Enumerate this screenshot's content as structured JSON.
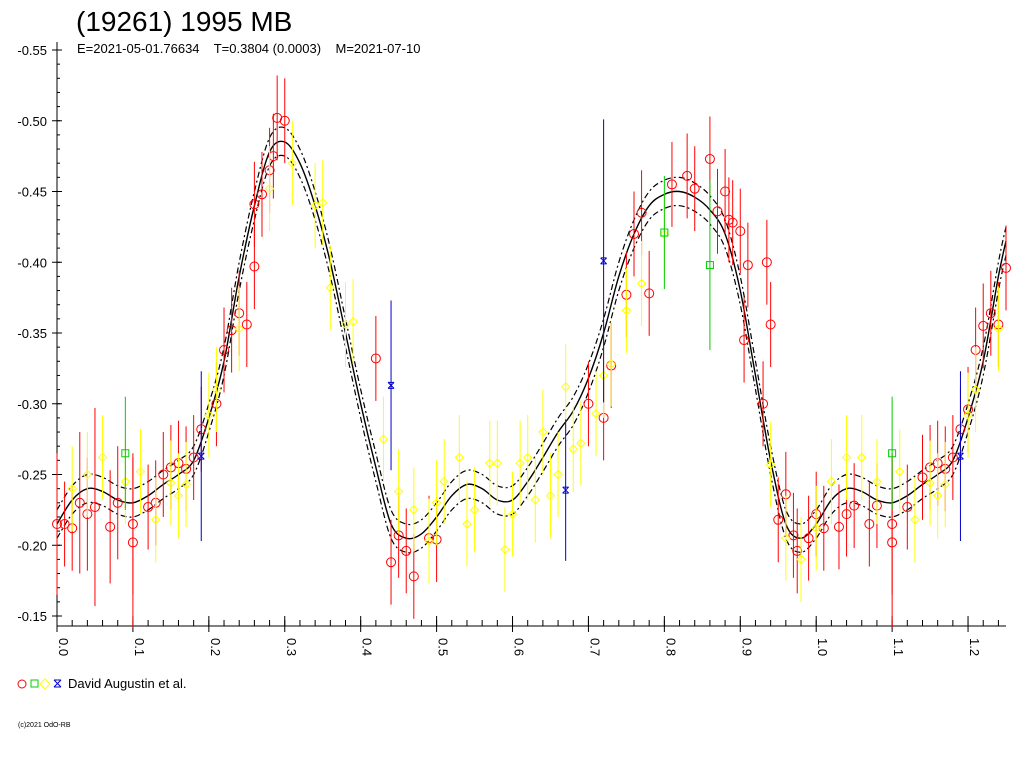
{
  "chart_data": {
    "type": "scatter",
    "title": "(19261) 1995 MB",
    "subtitle": "E=2021-05-01.76634    T=0.3804 (0.0003)    M=2021-07-10",
    "x_ticks": [
      "0.0",
      "0.1",
      "0.2",
      "0.3",
      "0.4",
      "0.5",
      "0.6",
      "0.7",
      "0.8",
      "0.9",
      "1.0",
      "1.1",
      "1.2"
    ],
    "y_ticks": [
      "-0.55",
      "-0.50",
      "-0.45",
      "-0.40",
      "-0.35",
      "-0.30",
      "-0.25",
      "-0.20",
      "-0.15"
    ],
    "xlim": [
      0.0,
      1.25
    ],
    "ylim": [
      -0.55,
      -0.15
    ],
    "y_inverted": true,
    "grid": false,
    "legend": "bottom-left",
    "legend_text": "David Augustin et al.",
    "copyright": "(c)2021 OdO-RB",
    "colors": {
      "red": "#ff0000",
      "yellow": "#ffff00",
      "green": "#00cc00",
      "blue": "#0000cc",
      "curve": "#000000"
    },
    "fit_curve": {
      "x": [
        0.0,
        0.02,
        0.04,
        0.06,
        0.08,
        0.1,
        0.12,
        0.14,
        0.16,
        0.18,
        0.2,
        0.22,
        0.24,
        0.26,
        0.28,
        0.3,
        0.32,
        0.34,
        0.36,
        0.38,
        0.4,
        0.42,
        0.44,
        0.46,
        0.48,
        0.5,
        0.52,
        0.54,
        0.56,
        0.58,
        0.6,
        0.62,
        0.64,
        0.66,
        0.68,
        0.7,
        0.72,
        0.74,
        0.76,
        0.78,
        0.8,
        0.82,
        0.84,
        0.86,
        0.88,
        0.9,
        0.92,
        0.94,
        0.96,
        0.98,
        1.0,
        1.02,
        1.04,
        1.06,
        1.08,
        1.1,
        1.12,
        1.14,
        1.16,
        1.18,
        1.2,
        1.22,
        1.24,
        1.25
      ],
      "y": [
        -0.215,
        -0.232,
        -0.24,
        -0.238,
        -0.232,
        -0.23,
        -0.235,
        -0.243,
        -0.25,
        -0.26,
        -0.29,
        -0.33,
        -0.39,
        -0.44,
        -0.478,
        -0.485,
        -0.47,
        -0.44,
        -0.4,
        -0.35,
        -0.3,
        -0.255,
        -0.215,
        -0.205,
        -0.208,
        -0.22,
        -0.235,
        -0.243,
        -0.24,
        -0.232,
        -0.232,
        -0.245,
        -0.262,
        -0.28,
        -0.295,
        -0.318,
        -0.35,
        -0.39,
        -0.42,
        -0.44,
        -0.448,
        -0.45,
        -0.446,
        -0.437,
        -0.42,
        -0.38,
        -0.32,
        -0.26,
        -0.215,
        -0.205,
        -0.215,
        -0.232,
        -0.24,
        -0.238,
        -0.232,
        -0.23,
        -0.235,
        -0.243,
        -0.25,
        -0.26,
        -0.29,
        -0.33,
        -0.39,
        -0.415
      ],
      "band": 0.01
    },
    "series": [
      {
        "color": "red",
        "marker": "circle",
        "points": [
          [
            0.0,
            -0.215,
            0.05
          ],
          [
            0.01,
            -0.215,
            0.03
          ],
          [
            0.02,
            -0.212,
            0.03
          ],
          [
            0.03,
            -0.23,
            0.05
          ],
          [
            0.04,
            -0.222,
            0.04
          ],
          [
            0.05,
            -0.227,
            0.07
          ],
          [
            0.07,
            -0.213,
            0.04
          ],
          [
            0.08,
            -0.23,
            0.04
          ],
          [
            0.1,
            -0.215,
            0.05
          ],
          [
            0.1,
            -0.202,
            0.06
          ],
          [
            0.12,
            -0.227,
            0.03
          ],
          [
            0.13,
            -0.23,
            0.03
          ],
          [
            0.14,
            -0.25,
            0.03
          ],
          [
            0.15,
            -0.255,
            0.03
          ],
          [
            0.16,
            -0.258,
            0.03
          ],
          [
            0.17,
            -0.254,
            0.03
          ],
          [
            0.18,
            -0.262,
            0.03
          ],
          [
            0.19,
            -0.282,
            0.03
          ],
          [
            0.21,
            -0.3,
            0.03
          ],
          [
            0.22,
            -0.338,
            0.03
          ],
          [
            0.23,
            -0.352,
            0.03
          ],
          [
            0.24,
            -0.364,
            0.03
          ],
          [
            0.25,
            -0.356,
            0.03
          ],
          [
            0.26,
            -0.397,
            0.03
          ],
          [
            0.26,
            -0.441,
            0.03
          ],
          [
            0.27,
            -0.448,
            0.03
          ],
          [
            0.28,
            -0.465,
            0.03
          ],
          [
            0.285,
            -0.475,
            0.03
          ],
          [
            0.29,
            -0.502,
            0.03
          ],
          [
            0.3,
            -0.5,
            0.03
          ],
          [
            0.42,
            -0.332,
            0.03
          ],
          [
            0.44,
            -0.188,
            0.03
          ],
          [
            0.45,
            -0.207,
            0.03
          ],
          [
            0.46,
            -0.196,
            0.03
          ],
          [
            0.47,
            -0.178,
            0.03
          ],
          [
            0.49,
            -0.205,
            0.03
          ],
          [
            0.5,
            -0.204,
            0.03
          ],
          [
            0.7,
            -0.3,
            0.03
          ],
          [
            0.72,
            -0.29,
            0.03
          ],
          [
            0.73,
            -0.327,
            0.03
          ],
          [
            0.75,
            -0.377,
            0.03
          ],
          [
            0.76,
            -0.42,
            0.03
          ],
          [
            0.77,
            -0.435,
            0.03
          ],
          [
            0.78,
            -0.378,
            0.03
          ],
          [
            0.81,
            -0.455,
            0.03
          ],
          [
            0.83,
            -0.461,
            0.03
          ],
          [
            0.84,
            -0.452,
            0.03
          ],
          [
            0.86,
            -0.473,
            0.03
          ],
          [
            0.87,
            -0.436,
            0.03
          ],
          [
            0.88,
            -0.45,
            0.03
          ],
          [
            0.885,
            -0.43,
            0.03
          ],
          [
            0.89,
            -0.428,
            0.03
          ],
          [
            0.9,
            -0.422,
            0.03
          ],
          [
            0.905,
            -0.345,
            0.03
          ],
          [
            0.91,
            -0.398,
            0.03
          ],
          [
            0.93,
            -0.3,
            0.03
          ],
          [
            0.935,
            -0.4,
            0.03
          ],
          [
            0.94,
            -0.356,
            0.03
          ],
          [
            0.95,
            -0.218,
            0.03
          ],
          [
            0.96,
            -0.236,
            0.03
          ],
          [
            0.97,
            -0.207,
            0.03
          ],
          [
            0.975,
            -0.196,
            0.03
          ],
          [
            0.99,
            -0.205,
            0.03
          ],
          [
            1.0,
            -0.222,
            0.03
          ],
          [
            1.01,
            -0.212,
            0.03
          ],
          [
            1.03,
            -0.213,
            0.03
          ],
          [
            1.04,
            -0.222,
            0.03
          ],
          [
            1.05,
            -0.228,
            0.03
          ],
          [
            1.07,
            -0.215,
            0.03
          ],
          [
            1.08,
            -0.228,
            0.03
          ],
          [
            1.1,
            -0.215,
            0.05
          ],
          [
            1.1,
            -0.202,
            0.06
          ],
          [
            1.12,
            -0.227,
            0.03
          ],
          [
            1.14,
            -0.248,
            0.03
          ],
          [
            1.15,
            -0.255,
            0.03
          ],
          [
            1.16,
            -0.258,
            0.03
          ],
          [
            1.17,
            -0.254,
            0.03
          ],
          [
            1.18,
            -0.262,
            0.03
          ],
          [
            1.19,
            -0.282,
            0.03
          ],
          [
            1.2,
            -0.296,
            0.03
          ],
          [
            1.21,
            -0.338,
            0.03
          ],
          [
            1.22,
            -0.355,
            0.03
          ],
          [
            1.23,
            -0.364,
            0.03
          ],
          [
            1.24,
            -0.356,
            0.03
          ],
          [
            1.25,
            -0.396,
            0.03
          ]
        ]
      },
      {
        "color": "yellow",
        "marker": "diamond",
        "points": [
          [
            0.02,
            -0.24,
            0.03
          ],
          [
            0.04,
            -0.25,
            0.03
          ],
          [
            0.06,
            -0.262,
            0.03
          ],
          [
            0.09,
            -0.245,
            0.03
          ],
          [
            0.11,
            -0.252,
            0.03
          ],
          [
            0.13,
            -0.218,
            0.03
          ],
          [
            0.15,
            -0.244,
            0.03
          ],
          [
            0.16,
            -0.235,
            0.03
          ],
          [
            0.17,
            -0.243,
            0.03
          ],
          [
            0.2,
            -0.292,
            0.03
          ],
          [
            0.21,
            -0.31,
            0.03
          ],
          [
            0.24,
            -0.353,
            0.03
          ],
          [
            0.28,
            -0.452,
            0.03
          ],
          [
            0.31,
            -0.47,
            0.03
          ],
          [
            0.34,
            -0.44,
            0.03
          ],
          [
            0.35,
            -0.442,
            0.03
          ],
          [
            0.36,
            -0.382,
            0.03
          ],
          [
            0.38,
            -0.356,
            0.03
          ],
          [
            0.39,
            -0.358,
            0.03
          ],
          [
            0.43,
            -0.275,
            0.03
          ],
          [
            0.45,
            -0.238,
            0.03
          ],
          [
            0.47,
            -0.225,
            0.03
          ],
          [
            0.49,
            -0.203,
            0.03
          ],
          [
            0.5,
            -0.23,
            0.03
          ],
          [
            0.51,
            -0.245,
            0.03
          ],
          [
            0.53,
            -0.262,
            0.03
          ],
          [
            0.54,
            -0.215,
            0.03
          ],
          [
            0.55,
            -0.225,
            0.03
          ],
          [
            0.57,
            -0.258,
            0.03
          ],
          [
            0.58,
            -0.258,
            0.03
          ],
          [
            0.59,
            -0.197,
            0.03
          ],
          [
            0.6,
            -0.222,
            0.03
          ],
          [
            0.61,
            -0.258,
            0.03
          ],
          [
            0.62,
            -0.262,
            0.03
          ],
          [
            0.63,
            -0.232,
            0.03
          ],
          [
            0.64,
            -0.28,
            0.03
          ],
          [
            0.65,
            -0.235,
            0.03
          ],
          [
            0.66,
            -0.25,
            0.03
          ],
          [
            0.67,
            -0.312,
            0.03
          ],
          [
            0.68,
            -0.268,
            0.03
          ],
          [
            0.69,
            -0.272,
            0.03
          ],
          [
            0.71,
            -0.293,
            0.03
          ],
          [
            0.72,
            -0.32,
            0.03
          ],
          [
            0.73,
            -0.328,
            0.03
          ],
          [
            0.75,
            -0.366,
            0.03
          ],
          [
            0.77,
            -0.385,
            0.03
          ],
          [
            0.8,
            -0.42,
            0.03
          ],
          [
            0.94,
            -0.257,
            0.03
          ],
          [
            0.96,
            -0.205,
            0.03
          ],
          [
            0.98,
            -0.19,
            0.03
          ],
          [
            1.0,
            -0.212,
            0.03
          ],
          [
            1.02,
            -0.245,
            0.03
          ],
          [
            1.04,
            -0.262,
            0.03
          ],
          [
            1.06,
            -0.262,
            0.03
          ],
          [
            1.08,
            -0.245,
            0.03
          ],
          [
            1.11,
            -0.252,
            0.03
          ],
          [
            1.13,
            -0.218,
            0.03
          ],
          [
            1.15,
            -0.244,
            0.03
          ],
          [
            1.16,
            -0.235,
            0.03
          ],
          [
            1.17,
            -0.243,
            0.03
          ],
          [
            1.2,
            -0.292,
            0.03
          ],
          [
            1.21,
            -0.31,
            0.03
          ],
          [
            1.24,
            -0.353,
            0.03
          ]
        ]
      },
      {
        "color": "green",
        "marker": "square",
        "points": [
          [
            0.09,
            -0.265,
            0.04
          ],
          [
            0.8,
            -0.421,
            0.04
          ],
          [
            0.86,
            -0.398,
            0.06
          ],
          [
            1.1,
            -0.265,
            0.04
          ]
        ]
      },
      {
        "color": "blue",
        "marker": "cross",
        "points": [
          [
            0.19,
            -0.263,
            0.06
          ],
          [
            0.44,
            -0.313,
            0.06
          ],
          [
            0.67,
            -0.239,
            0.05
          ],
          [
            0.72,
            -0.401,
            0.1
          ],
          [
            1.19,
            -0.263,
            0.06
          ]
        ]
      }
    ]
  }
}
